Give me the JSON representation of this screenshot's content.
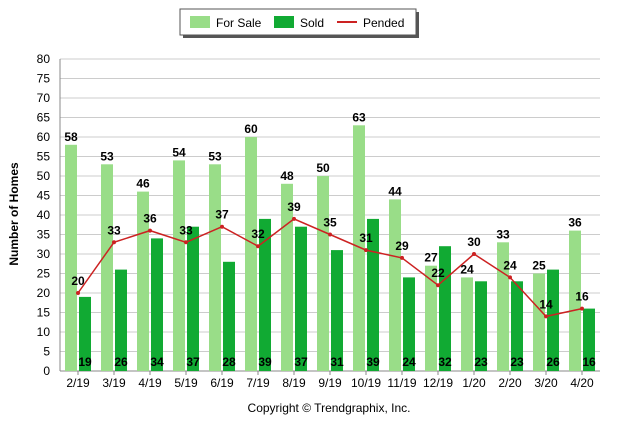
{
  "chart_data": {
    "type": "bar",
    "ylabel": "Number of Homes",
    "ylim": [
      0,
      80
    ],
    "yticks": [
      0,
      5,
      10,
      15,
      20,
      25,
      30,
      35,
      40,
      45,
      50,
      55,
      60,
      65,
      70,
      75,
      80
    ],
    "grid": true,
    "legend_position": "top-center",
    "categories": [
      "2/19",
      "3/19",
      "4/19",
      "5/19",
      "6/19",
      "7/19",
      "8/19",
      "9/19",
      "10/19",
      "11/19",
      "12/19",
      "1/20",
      "2/20",
      "3/20",
      "4/20"
    ],
    "series": [
      {
        "name": "For Sale",
        "type": "bar",
        "color": "#99dd88",
        "values": [
          58,
          53,
          46,
          54,
          53,
          60,
          48,
          50,
          63,
          44,
          27,
          24,
          33,
          25,
          36
        ]
      },
      {
        "name": "Sold",
        "type": "bar",
        "color": "#11aa33",
        "values": [
          19,
          26,
          34,
          37,
          28,
          39,
          37,
          31,
          39,
          24,
          32,
          23,
          23,
          26,
          16
        ]
      },
      {
        "name": "Pended",
        "type": "line",
        "color": "#cc2222",
        "values": [
          20,
          33,
          36,
          33,
          37,
          32,
          39,
          35,
          31,
          29,
          22,
          30,
          24,
          14,
          16
        ]
      }
    ]
  },
  "footer": {
    "copyright": "Copyright © Trendgraphix, Inc."
  }
}
